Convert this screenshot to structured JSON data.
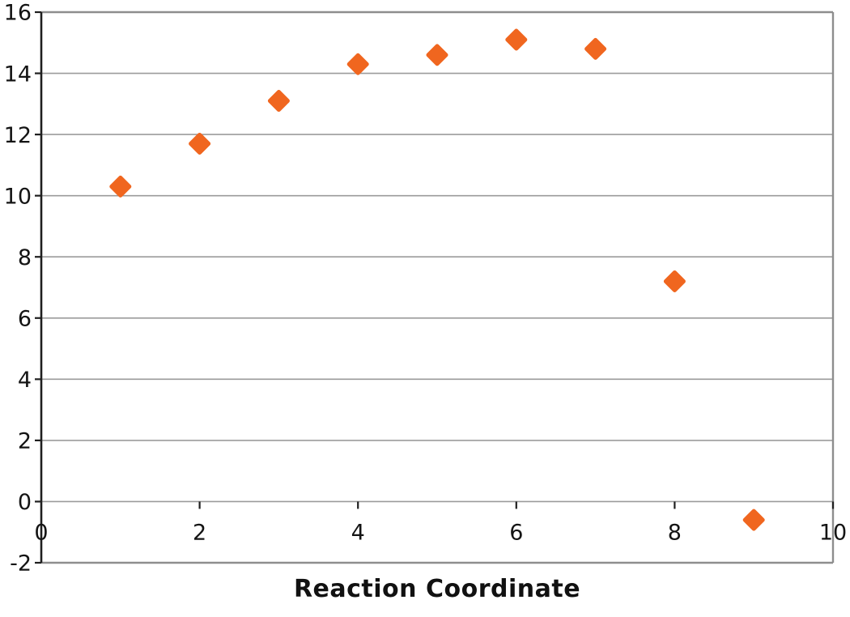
{
  "chart_data": {
    "type": "scatter",
    "title": "",
    "xlabel": "Reaction Coordinate",
    "ylabel": "",
    "x": [
      1,
      2,
      3,
      4,
      5,
      6,
      7,
      8,
      9
    ],
    "y": [
      10.3,
      11.7,
      13.1,
      14.3,
      14.6,
      15.1,
      14.8,
      7.2,
      -0.6
    ],
    "xlim": [
      0,
      10
    ],
    "ylim": [
      -2,
      16
    ],
    "xticks": [
      0,
      2,
      4,
      6,
      8,
      10
    ],
    "yticks": [
      -2,
      0,
      2,
      4,
      6,
      8,
      10,
      12,
      14,
      16
    ],
    "grid": "horizontal-only",
    "legend": "none",
    "marker": "diamond",
    "colors": {
      "marker": "#F0661F",
      "gridline": "#9B9B9B",
      "plot_border": "#8E8E8E",
      "axis": "#1F1F1F",
      "tick_text": "#141414",
      "title_text": "#111111",
      "background": "#FFFFFF"
    }
  }
}
